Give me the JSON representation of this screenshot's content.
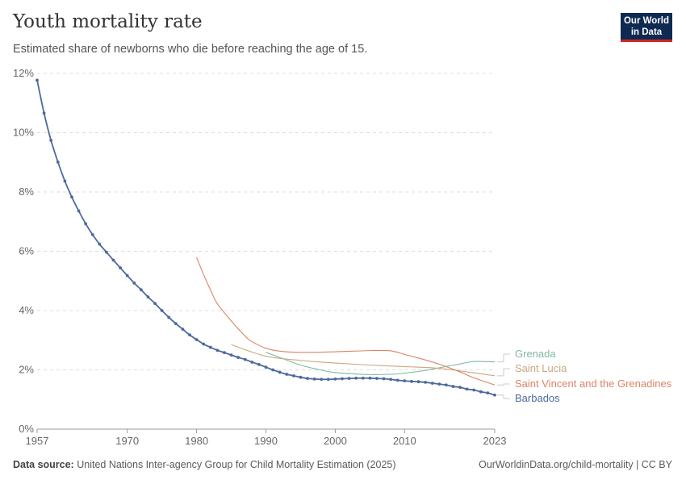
{
  "header": {
    "title": "Youth mortality rate",
    "subtitle": "Estimated share of newborns who die before reaching the age of 15.",
    "logo_text": "Our World in Data"
  },
  "footer": {
    "source_label": "Data source:",
    "source_text": "United Nations Inter-agency Group for Child Mortality Estimation (2025)",
    "link": "OurWorldinData.org/child-mortality | CC BY"
  },
  "chart_data": {
    "type": "line",
    "title": "Youth mortality rate",
    "xlim": [
      1957,
      2023
    ],
    "ylim": [
      0,
      12
    ],
    "x_ticks": [
      "1957",
      "1970",
      "1980",
      "1990",
      "2000",
      "2010",
      "2023"
    ],
    "y_ticks": [
      "0%",
      "2%",
      "4%",
      "6%",
      "8%",
      "10%",
      "12%"
    ],
    "grid": "horizontal dashed",
    "legend": "right, inline labels at line ends",
    "series": [
      {
        "name": "Grenada",
        "color": "#7fb9a2",
        "markers": false,
        "x": [
          1990,
          1993,
          1995,
          1998,
          2000,
          2003,
          2005,
          2008,
          2010,
          2013,
          2015,
          2018,
          2020,
          2023
        ],
        "y": [
          2.59,
          2.33,
          2.16,
          1.99,
          1.91,
          1.86,
          1.84,
          1.85,
          1.89,
          1.98,
          2.07,
          2.2,
          2.28,
          2.27
        ]
      },
      {
        "name": "Saint Lucia",
        "color": "#c9a880",
        "markers": false,
        "x": [
          1985,
          1990,
          1995,
          2000,
          2005,
          2010,
          2015,
          2020,
          2023
        ],
        "y": [
          2.85,
          2.46,
          2.32,
          2.23,
          2.16,
          2.11,
          2.05,
          1.9,
          1.8
        ]
      },
      {
        "name": "Saint Vincent and the Grenadines",
        "color": "#db8465",
        "markers": false,
        "x": [
          1980,
          1981,
          1982,
          1983,
          1985,
          1987,
          1988,
          1990,
          1992,
          1995,
          2000,
          2005,
          2008,
          2010,
          2012,
          2015,
          2018,
          2020,
          2023
        ],
        "y": [
          5.79,
          5.22,
          4.7,
          4.23,
          3.65,
          3.14,
          2.95,
          2.73,
          2.63,
          2.59,
          2.61,
          2.65,
          2.64,
          2.52,
          2.4,
          2.19,
          1.93,
          1.73,
          1.49
        ]
      },
      {
        "name": "Barbados",
        "color": "#4c6a9c",
        "markers": true,
        "x": [
          1957,
          1958,
          1959,
          1960,
          1961,
          1962,
          1963,
          1964,
          1965,
          1966,
          1967,
          1968,
          1969,
          1970,
          1971,
          1972,
          1973,
          1974,
          1975,
          1976,
          1977,
          1978,
          1979,
          1980,
          1981,
          1982,
          1983,
          1984,
          1985,
          1986,
          1987,
          1988,
          1989,
          1990,
          1991,
          1992,
          1993,
          1994,
          1995,
          1996,
          1997,
          1998,
          1999,
          2000,
          2001,
          2002,
          2003,
          2004,
          2005,
          2006,
          2007,
          2008,
          2009,
          2010,
          2011,
          2012,
          2013,
          2014,
          2015,
          2016,
          2017,
          2018,
          2019,
          2020,
          2021,
          2022,
          2023
        ],
        "y": [
          11.77,
          10.66,
          9.74,
          9.01,
          8.37,
          7.83,
          7.36,
          6.93,
          6.56,
          6.24,
          5.97,
          5.7,
          5.44,
          5.18,
          4.93,
          4.7,
          4.46,
          4.24,
          4.0,
          3.77,
          3.56,
          3.37,
          3.18,
          3.02,
          2.87,
          2.76,
          2.66,
          2.58,
          2.5,
          2.42,
          2.35,
          2.26,
          2.18,
          2.09,
          2.0,
          1.92,
          1.85,
          1.8,
          1.75,
          1.71,
          1.69,
          1.68,
          1.68,
          1.69,
          1.7,
          1.71,
          1.72,
          1.72,
          1.72,
          1.71,
          1.7,
          1.68,
          1.65,
          1.63,
          1.61,
          1.6,
          1.58,
          1.55,
          1.52,
          1.49,
          1.44,
          1.41,
          1.35,
          1.32,
          1.26,
          1.22,
          1.15
        ]
      }
    ]
  }
}
